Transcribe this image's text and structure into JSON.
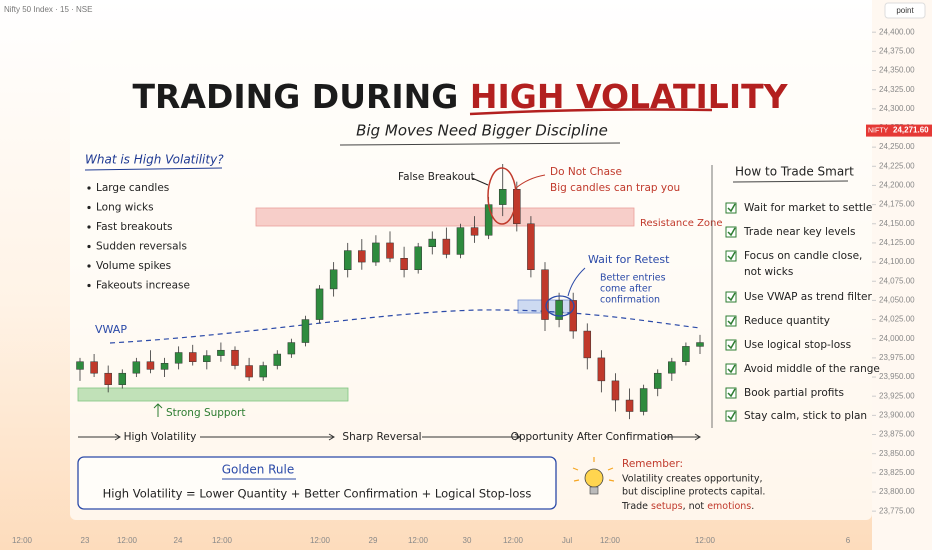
{
  "header": {
    "symbol": "Nifty 50 Index · 15 · NSE",
    "mode": "point"
  },
  "current_price": {
    "symbol": "NIFTY",
    "value": 24271.6,
    "label": "24,271.60"
  },
  "time_axis": {
    "labels": [
      "12:00",
      "23",
      "12:00",
      "24",
      "12:00",
      "12:00",
      "29",
      "12:00",
      "30",
      "12:00",
      "Jul",
      "12:00",
      "12:00",
      "6"
    ]
  },
  "chart_data": {
    "type": "candlestick",
    "ylim": [
      23753,
      24442
    ],
    "yticks": [
      {
        "value": 24400,
        "label": "24,400.00"
      },
      {
        "value": 24375,
        "label": "24,375.00"
      },
      {
        "value": 24350,
        "label": "24,350.00"
      },
      {
        "value": 24325,
        "label": "24,325.00"
      },
      {
        "value": 24300,
        "label": "24,300.00"
      },
      {
        "value": 24275,
        "label": "24,275.00"
      },
      {
        "value": 24250,
        "label": "24,250.00"
      },
      {
        "value": 24225,
        "label": "24,225.00"
      },
      {
        "value": 24200,
        "label": "24,200.00"
      },
      {
        "value": 24175,
        "label": "24,175.00"
      },
      {
        "value": 24150,
        "label": "24,150.00"
      },
      {
        "value": 24125,
        "label": "24,125.00"
      },
      {
        "value": 24100,
        "label": "24,100.00"
      },
      {
        "value": 24075,
        "label": "24,075.00"
      },
      {
        "value": 24050,
        "label": "24,050.00"
      },
      {
        "value": 24025,
        "label": "24,025.00"
      },
      {
        "value": 24000,
        "label": "24,000.00"
      },
      {
        "value": 23975,
        "label": "23,975.00"
      },
      {
        "value": 23950,
        "label": "23,950.00"
      },
      {
        "value": 23925,
        "label": "23,925.00"
      },
      {
        "value": 23900,
        "label": "23,900.00"
      },
      {
        "value": 23875,
        "label": "23,875.00"
      },
      {
        "value": 23850,
        "label": "23,850.00"
      },
      {
        "value": 23825,
        "label": "23,825.00"
      },
      {
        "value": 23800,
        "label": "23,800.00"
      },
      {
        "value": 23775,
        "label": "23,775.00"
      }
    ],
    "up_color": "#2e8b3e",
    "down_color": "#c0392b",
    "open": [
      23960,
      23970,
      23955,
      23940,
      23955,
      23970,
      23960,
      23968,
      23982,
      23970,
      23978,
      23985,
      23965,
      23950,
      23965,
      23980,
      23995,
      24025,
      24065,
      24090,
      24115,
      24100,
      24125,
      24105,
      24090,
      24120,
      24130,
      24110,
      24145,
      24135,
      24175,
      24195,
      24150,
      24090,
      24025,
      24050,
      24010,
      23975,
      23945,
      23920,
      23905,
      23935,
      23955,
      23970,
      23990
    ],
    "high": [
      23975,
      23980,
      23965,
      23960,
      23975,
      23985,
      23975,
      23990,
      23992,
      23985,
      23995,
      23990,
      23975,
      23970,
      23985,
      24000,
      24030,
      24070,
      24100,
      24125,
      24130,
      24135,
      24140,
      24120,
      24125,
      24140,
      24145,
      24150,
      24160,
      24185,
      24228,
      24205,
      24160,
      24100,
      24060,
      24060,
      24020,
      23985,
      23955,
      23935,
      23940,
      23960,
      23975,
      23995,
      24005
    ],
    "low": [
      23945,
      23950,
      23930,
      23935,
      23950,
      23955,
      23950,
      23960,
      23965,
      23960,
      23970,
      23960,
      23945,
      23945,
      23960,
      23975,
      23990,
      24020,
      24055,
      24080,
      24090,
      24095,
      24100,
      24080,
      24085,
      24110,
      24105,
      24105,
      24125,
      24130,
      24160,
      24140,
      24080,
      24010,
      24015,
      24000,
      23960,
      23930,
      23905,
      23895,
      23900,
      23925,
      23945,
      23965,
      23980
    ],
    "close": [
      23970,
      23955,
      23940,
      23955,
      23970,
      23960,
      23968,
      23982,
      23970,
      23978,
      23985,
      23965,
      23950,
      23965,
      23980,
      23995,
      24025,
      24065,
      24090,
      24115,
      24100,
      24125,
      24105,
      24090,
      24120,
      24130,
      24110,
      24145,
      24135,
      24175,
      24195,
      24150,
      24090,
      24025,
      24050,
      24010,
      23975,
      23945,
      23920,
      23905,
      23935,
      23955,
      23970,
      23990,
      23995
    ]
  },
  "infographic": {
    "title": {
      "prefix": "TRADING DURING ",
      "highlight": "HIGH VOLATILITY"
    },
    "subtitle": "Big Moves Need Bigger Discipline",
    "what_is": {
      "heading": "What is High Volatility?",
      "items": [
        "Large candles",
        "Long wicks",
        "Fast breakouts",
        "Sudden reversals",
        "Volume spikes",
        "Fakeouts increase"
      ]
    },
    "annotations": {
      "vwap": "VWAP",
      "support": "Strong Support",
      "false_breakout": "False Breakout",
      "do_not_chase": "Do Not Chase",
      "trap": "Big candles can trap you",
      "resistance": "Resistance Zone",
      "retest": "Wait for Retest",
      "retest_note": [
        "Better entries",
        "come after",
        "confirmation"
      ]
    },
    "phases": [
      "High Volatility",
      "Sharp Reversal",
      "Opportunity After Confirmation"
    ],
    "how_to": {
      "heading": "How to Trade Smart",
      "items": [
        [
          "Wait for market to settle"
        ],
        [
          "Trade near key levels"
        ],
        [
          "Focus on candle close,",
          "not wicks"
        ],
        [
          "Use VWAP as trend filter"
        ],
        [
          "Reduce quantity"
        ],
        [
          "Use logical stop-loss"
        ],
        [
          "Avoid middle of the range"
        ],
        [
          "Book partial profits"
        ],
        [
          "Stay calm, stick to plan"
        ]
      ]
    },
    "golden_rule": {
      "heading": "Golden Rule",
      "text": "High Volatility = Lower Quantity + Better Confirmation + Logical Stop-loss"
    },
    "remember": {
      "heading": "Remember:",
      "line1": "Volatility creates opportunity,",
      "line2": "but discipline protects capital.",
      "line3": [
        "Trade ",
        "setups",
        ", not ",
        "emotions",
        "."
      ]
    }
  }
}
